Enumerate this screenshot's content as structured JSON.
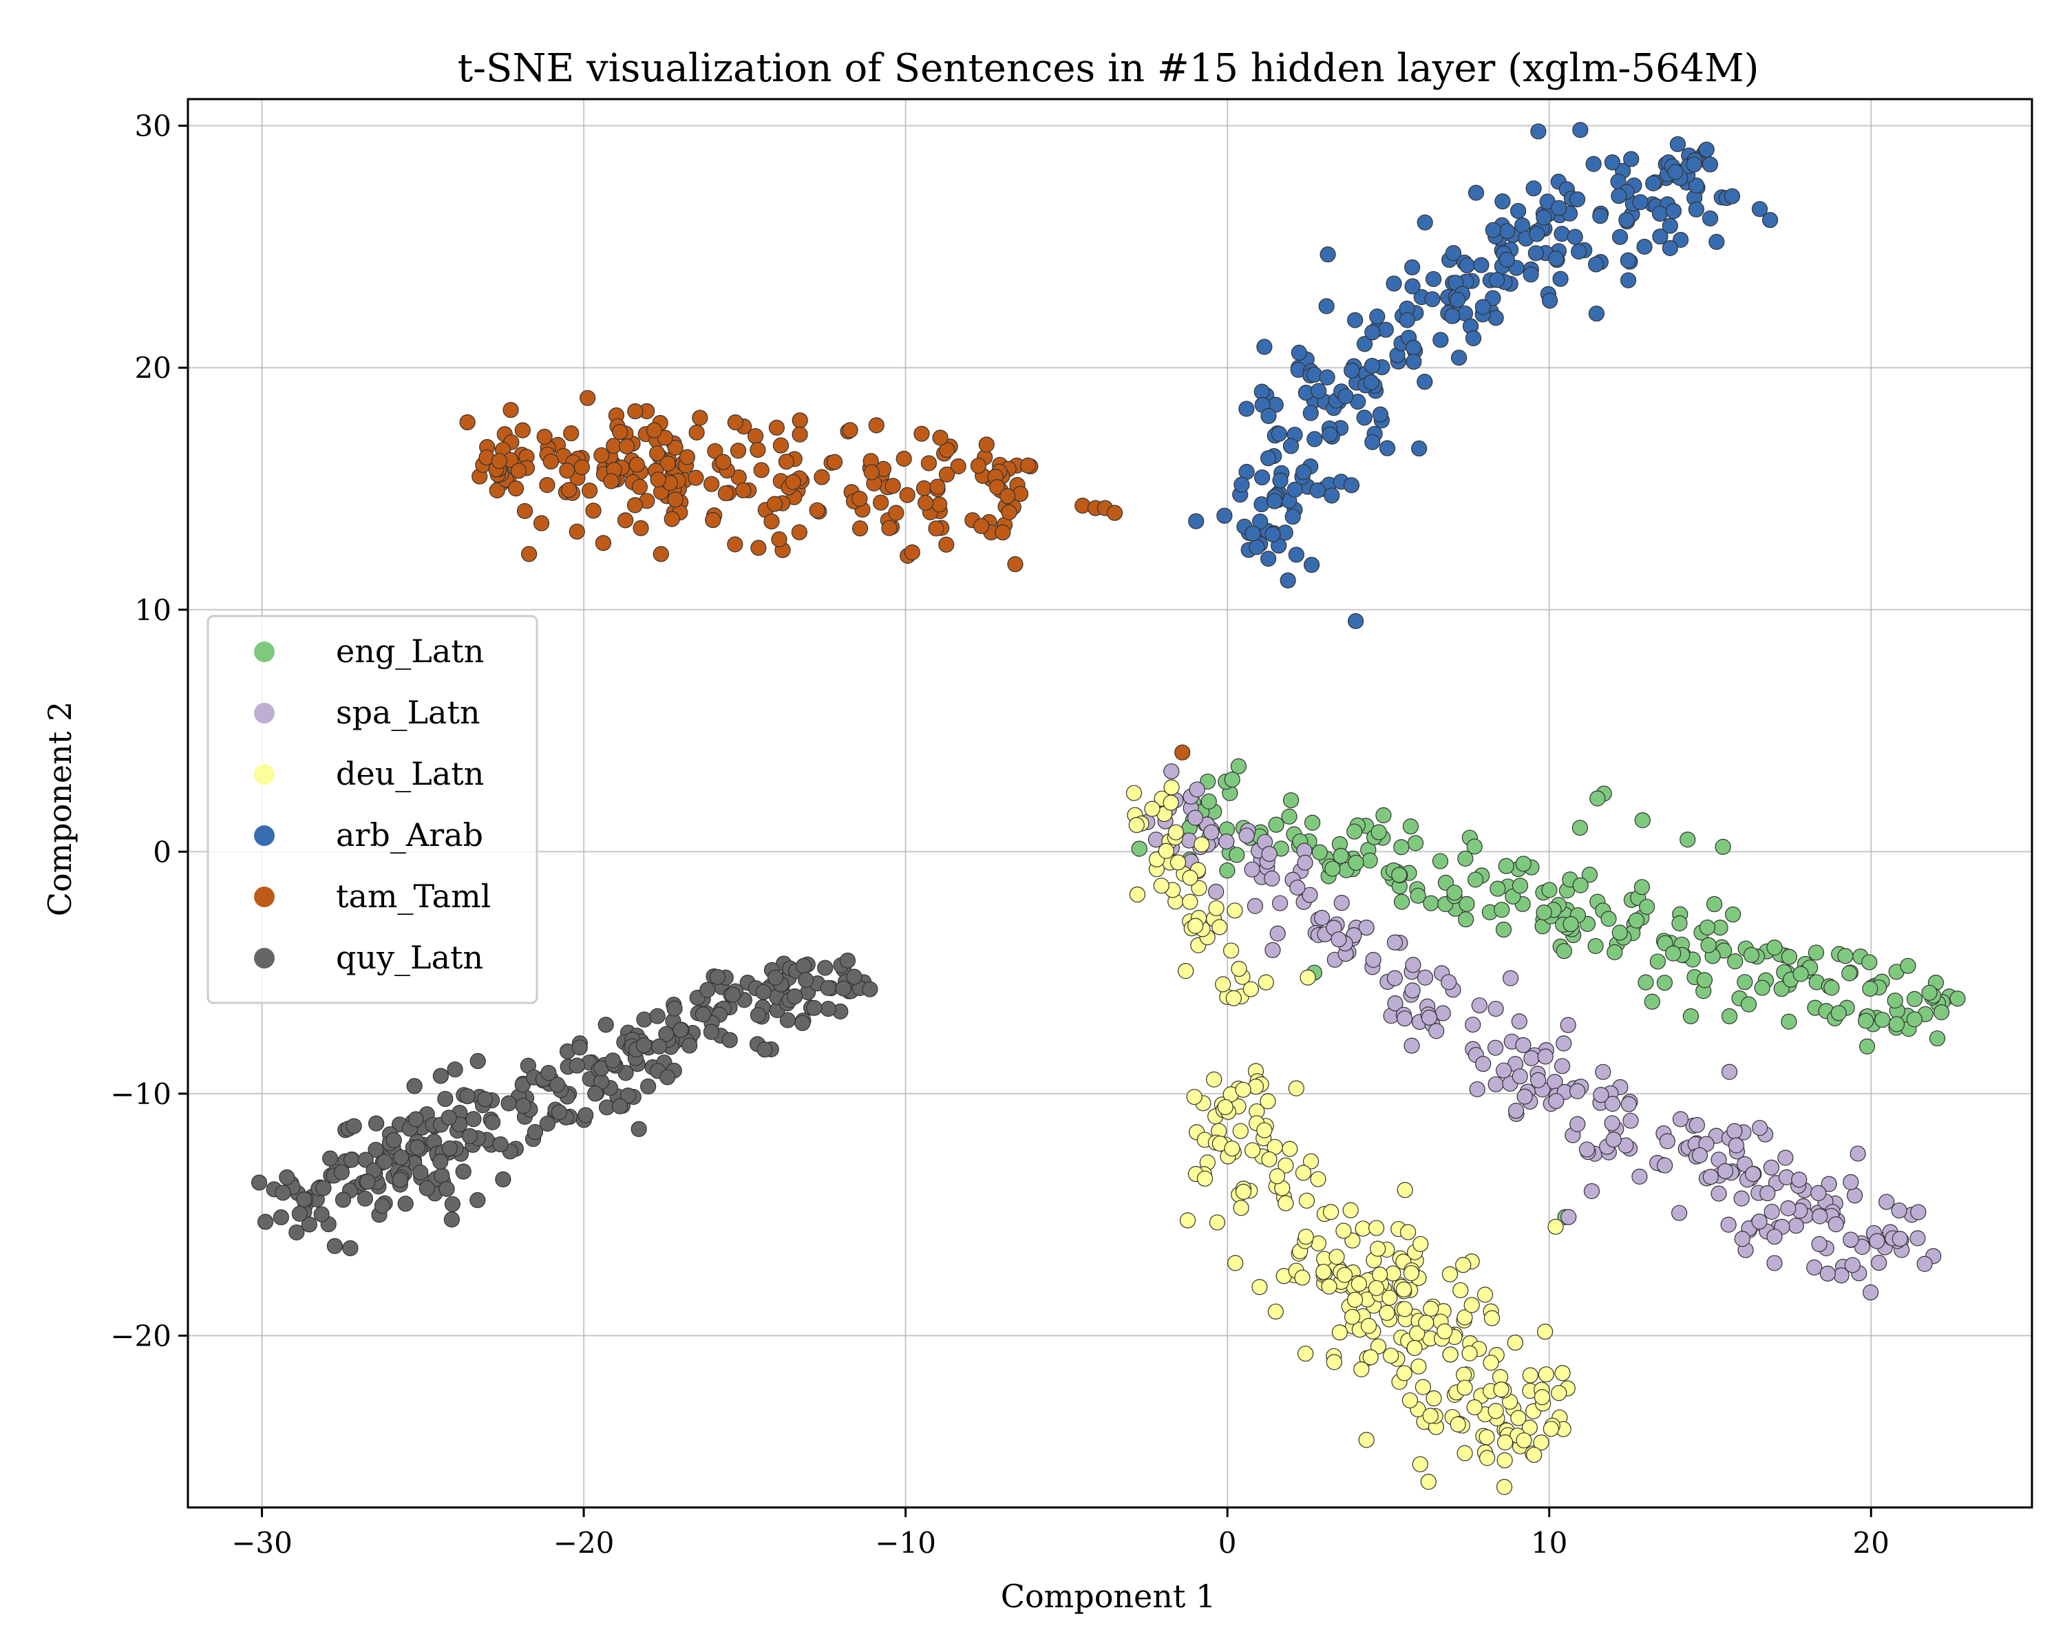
{
  "chart_data": {
    "type": "scatter",
    "title": "t-SNE visualization of Sentences in #15 hidden layer (xglm-564M)",
    "xlabel": "Component 1",
    "ylabel": "Component 2",
    "xlim": [
      -32.3,
      25.0
    ],
    "ylim": [
      -27.1,
      31.1
    ],
    "xticks": [
      -30,
      -20,
      -10,
      0,
      10,
      20
    ],
    "yticks": [
      -20,
      -10,
      0,
      10,
      20,
      30
    ],
    "xtick_labels": [
      "−30",
      "−20",
      "−10",
      "0",
      "10",
      "20"
    ],
    "ytick_labels": [
      "−20",
      "−10",
      "0",
      "10",
      "20",
      "30"
    ],
    "grid": true,
    "legend_position": "center-left",
    "series": [
      {
        "name": "eng_Latn",
        "color": "#7fc97f",
        "clusters": [
          {
            "from": [
              -1.5,
              2.0
            ],
            "to": [
              22.5,
              -7.0
            ],
            "n": 230,
            "spread": [
              0.9,
              0.9
            ],
            "curve": 0.0
          }
        ],
        "points": [
          [
            11.7,
            2.4
          ],
          [
            11.5,
            2.2
          ],
          [
            12.9,
            1.3
          ],
          [
            14.3,
            0.5
          ],
          [
            15.4,
            0.2
          ],
          [
            13.0,
            -5.4
          ],
          [
            13.2,
            -6.2
          ],
          [
            14.4,
            -6.8
          ],
          [
            15.6,
            -6.8
          ],
          [
            10.5,
            -15.1
          ],
          [
            2.7,
            -5.0
          ],
          [
            9.2,
            -0.5
          ]
        ]
      },
      {
        "name": "spa_Latn",
        "color": "#beaed4",
        "clusters": [
          {
            "from": [
              -2.0,
              2.4
            ],
            "to": [
              10.0,
              -10.0
            ],
            "n": 120,
            "spread": [
              0.8,
              0.8
            ],
            "curve": 0.0
          },
          {
            "from": [
              10.0,
              -10.0
            ],
            "to": [
              21.0,
              -16.5
            ],
            "n": 140,
            "spread": [
              1.1,
              1.1
            ],
            "curve": 0.0
          }
        ],
        "points": [
          [
            -1.0,
            1.4
          ],
          [
            -0.5,
            0.8
          ],
          [
            10.6,
            -15.1
          ],
          [
            12.0,
            -11.9
          ],
          [
            15.6,
            -9.1
          ],
          [
            17.0,
            -17.0
          ],
          [
            16.0,
            -16.0
          ],
          [
            20.9,
            -16.0
          ]
        ]
      },
      {
        "name": "deu_Latn",
        "color": "#fdfd99",
        "clusters": [
          {
            "from": [
              -2.5,
              2.8
            ],
            "to": [
              0.5,
              -6.3
            ],
            "n": 45,
            "spread": [
              0.6,
              0.6
            ],
            "curve": 0.0
          },
          {
            "from": [
              0.0,
              -9.3
            ],
            "to": [
              1.3,
              -14.4
            ],
            "n": 60,
            "spread": [
              0.7,
              0.9
            ],
            "curve": 0.0
          },
          {
            "from": [
              2.6,
              -15.6
            ],
            "to": [
              9.2,
              -24.4
            ],
            "n": 200,
            "spread": [
              1.4,
              1.4
            ],
            "curve": 0.0
          }
        ],
        "points": [
          [
            -1.6,
            0.8
          ],
          [
            -0.8,
            0.3
          ],
          [
            1.2,
            -5.4
          ],
          [
            2.5,
            -5.2
          ],
          [
            10.2,
            -15.5
          ]
        ]
      },
      {
        "name": "arb_Arab",
        "color": "#386cb0",
        "clusters": [
          {
            "from": [
              0.8,
              12.5
            ],
            "to": [
              15.5,
              28.3
            ],
            "n": 270,
            "spread": [
              0.8,
              1.2
            ],
            "curve": 0.12
          }
        ],
        "points": [
          [
            10.3,
            26.6
          ],
          [
            14.5,
            28.4
          ],
          [
            15.0,
            28.4
          ],
          [
            15.2,
            25.2
          ],
          [
            3.1,
            19.6
          ]
        ]
      },
      {
        "name": "tam_Taml",
        "color": "#bf5b17",
        "clusters": [
          {
            "from": [
              -23.2,
              15.8
            ],
            "to": [
              -6.2,
              14.8
            ],
            "n": 240,
            "spread": [
              0.5,
              1.2
            ],
            "curve": 0.0
          }
        ],
        "points": [
          [
            -4.5,
            14.3
          ],
          [
            -4.1,
            14.2
          ],
          [
            -3.8,
            14.2
          ],
          [
            -3.5,
            14.0
          ],
          [
            -1.4,
            4.1
          ],
          [
            -18.4,
            18.2
          ],
          [
            -17.6,
            12.3
          ],
          [
            -21.7,
            12.3
          ],
          [
            -13.3,
            13.2
          ],
          [
            -15.3,
            12.7
          ]
        ]
      },
      {
        "name": "quy_Latn",
        "color": "#666666",
        "clusters": [
          {
            "from": [
              -29.6,
              -15.0
            ],
            "to": [
              -12.0,
              -4.6
            ],
            "n": 300,
            "spread": [
              0.7,
              0.9
            ],
            "curve": 0.0
          }
        ],
        "points": [
          [
            -11.8,
            -4.5
          ],
          [
            -12.5,
            -4.8
          ],
          [
            -13.1,
            -5.3
          ],
          [
            -24.1,
            -15.2
          ],
          [
            -23.3,
            -14.4
          ],
          [
            -24.0,
            -9.0
          ]
        ]
      }
    ]
  }
}
